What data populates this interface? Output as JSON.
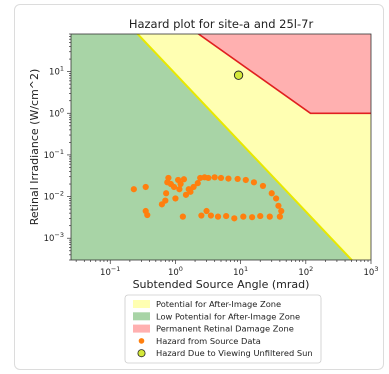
{
  "chart_data": {
    "type": "scatter",
    "title": "Hazard plot for site-a and 25l-7r",
    "xlabel": "Subtended Source Angle (mrad)",
    "ylabel": "Retinal Irradiance (W/cm^2)",
    "x_scale": "log",
    "y_scale": "log",
    "xlim": [
      0.025,
      1000
    ],
    "ylim": [
      0.0003,
      80
    ],
    "x_ticks": [
      {
        "value": 0.1,
        "base": "10",
        "exp": "−1"
      },
      {
        "value": 1,
        "base": "10",
        "exp": "0"
      },
      {
        "value": 10,
        "base": "10",
        "exp": "1"
      },
      {
        "value": 100,
        "base": "10",
        "exp": "2"
      },
      {
        "value": 1000,
        "base": "10",
        "exp": "3"
      }
    ],
    "y_ticks": [
      {
        "value": 0.001,
        "base": "10",
        "exp": "−3"
      },
      {
        "value": 0.01,
        "base": "10",
        "exp": "−2"
      },
      {
        "value": 0.1,
        "base": "10",
        "exp": "−1"
      },
      {
        "value": 1,
        "base": "10",
        "exp": "0"
      },
      {
        "value": 10,
        "base": "10",
        "exp": "1"
      }
    ],
    "grid": false,
    "legend_position": "bottom",
    "zones": {
      "after_image_boundary": [
        [
          0.025,
          3900
        ],
        [
          1000,
          9.75e-05
        ]
      ],
      "permanent_damage_boundary": [
        [
          0.025,
          11800
        ],
        [
          118,
          1
        ],
        [
          1000,
          1
        ]
      ]
    },
    "series": [
      {
        "name": "Potential for After-Image Zone",
        "kind": "zone",
        "color": "#ffffb2"
      },
      {
        "name": "Low Potential for After-Image Zone",
        "kind": "zone",
        "color": "#a8d4a6"
      },
      {
        "name": "Permanent Retinal Damage Zone",
        "kind": "zone",
        "color": "#ffb0b0"
      },
      {
        "name": "Hazard from Source Data",
        "kind": "points",
        "color": "#ff7f0e",
        "points": [
          [
            0.23,
            0.015
          ],
          [
            0.35,
            0.017
          ],
          [
            0.35,
            0.0045
          ],
          [
            0.37,
            0.0036
          ],
          [
            0.62,
            0.0065
          ],
          [
            0.7,
            0.008
          ],
          [
            0.72,
            0.012
          ],
          [
            0.75,
            0.022
          ],
          [
            0.78,
            0.028
          ],
          [
            0.85,
            0.02
          ],
          [
            0.95,
            0.017
          ],
          [
            1.0,
            0.009
          ],
          [
            1.1,
            0.025
          ],
          [
            1.15,
            0.015
          ],
          [
            1.2,
            0.02
          ],
          [
            1.3,
            0.0033
          ],
          [
            1.35,
            0.026
          ],
          [
            1.45,
            0.011
          ],
          [
            1.6,
            0.015
          ],
          [
            1.7,
            0.013
          ],
          [
            1.9,
            0.017
          ],
          [
            2.2,
            0.021
          ],
          [
            2.4,
            0.028
          ],
          [
            2.5,
            0.0035
          ],
          [
            2.8,
            0.029
          ],
          [
            3.0,
            0.0045
          ],
          [
            3.2,
            0.028
          ],
          [
            3.5,
            0.0035
          ],
          [
            4.0,
            0.029
          ],
          [
            4.5,
            0.0033
          ],
          [
            5.0,
            0.028
          ],
          [
            6.0,
            0.0034
          ],
          [
            6.5,
            0.027
          ],
          [
            8.0,
            0.003
          ],
          [
            9.0,
            0.0265
          ],
          [
            11,
            0.0033
          ],
          [
            12,
            0.025
          ],
          [
            15,
            0.0032
          ],
          [
            16,
            0.022
          ],
          [
            20,
            0.0034
          ],
          [
            22,
            0.018
          ],
          [
            28,
            0.0033
          ],
          [
            30,
            0.012
          ],
          [
            35,
            0.009
          ],
          [
            38,
            0.006
          ],
          [
            40,
            0.0033
          ],
          [
            42,
            0.0045
          ]
        ]
      },
      {
        "name": "Hazard Due to Viewing Unfiltered Sun",
        "kind": "points",
        "color": "#d4e83a",
        "points": [
          [
            9.3,
            8.2
          ]
        ]
      }
    ]
  }
}
